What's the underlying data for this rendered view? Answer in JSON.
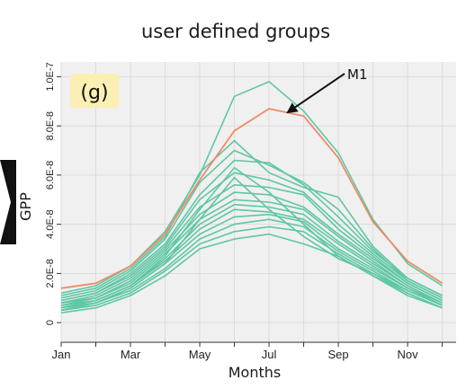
{
  "chart_data": {
    "type": "line",
    "title": "user defined groups",
    "xlabel": "Months",
    "ylabel": "GPP",
    "panel_label": "(g)",
    "x_ticks": [
      "Jan",
      "Mar",
      "May",
      "Jul",
      "Sep",
      "Nov"
    ],
    "y_ticks": [
      "0",
      "2.0E-8",
      "4.0E-8",
      "6.0E-8",
      "8.0E-8",
      "1.0E-7"
    ],
    "y_tick_values": [
      0,
      2e-08,
      4e-08,
      6e-08,
      8e-08,
      1e-07
    ],
    "x": [
      1,
      2,
      3,
      4,
      5,
      6,
      7,
      8,
      9,
      10,
      11,
      12
    ],
    "xlim": [
      1,
      12.4
    ],
    "ylim": [
      -8e-09,
      1.06e-07
    ],
    "grid": true,
    "colors": {
      "group": "#5ec7a4",
      "highlight": "#f08a65",
      "background": "#f0f0f0",
      "grid": "#dcdcdc"
    },
    "annotation": {
      "text": "M1",
      "series": "M1",
      "x": 7.5
    },
    "highlight": {
      "name": "M1",
      "values": [
        1.4e-08,
        1.6e-08,
        2.3e-08,
        3.6e-08,
        5.8e-08,
        7.8e-08,
        8.7e-08,
        8.4e-08,
        6.7e-08,
        4.1e-08,
        2.5e-08,
        1.6e-08
      ]
    },
    "series": [
      {
        "values": [
          1.2e-08,
          1.5e-08,
          2.3e-08,
          3.7e-08,
          6e-08,
          9.2e-08,
          9.8e-08,
          8.6e-08,
          6.9e-08,
          4.2e-08,
          2.4e-08,
          1.5e-08
        ]
      },
      {
        "values": [
          1.1e-08,
          1.4e-08,
          2.2e-08,
          3.5e-08,
          6.1e-08,
          7.4e-08,
          6.1e-08,
          5.5e-08,
          5.1e-08,
          3.1e-08,
          1.8e-08,
          1.1e-08
        ]
      },
      {
        "values": [
          1e-08,
          1.3e-08,
          2.1e-08,
          3.4e-08,
          5.7e-08,
          7e-08,
          6.4e-08,
          5.7e-08,
          4.6e-08,
          3e-08,
          1.7e-08,
          1e-08
        ]
      },
      {
        "values": [
          9e-09,
          1.2e-08,
          2e-08,
          3.2e-08,
          5.2e-08,
          6.6e-08,
          6.5e-08,
          5.6e-08,
          4.3e-08,
          2.9e-08,
          1.8e-08,
          1.1e-08
        ]
      },
      {
        "values": [
          9e-09,
          1.2e-08,
          1.9e-08,
          3.1e-08,
          5e-08,
          6.1e-08,
          5.8e-08,
          5.3e-08,
          4e-08,
          2.8e-08,
          1.7e-08,
          1e-08
        ]
      },
      {
        "values": [
          8e-09,
          1.1e-08,
          1.8e-08,
          3e-08,
          4.7e-08,
          5.6e-08,
          5.5e-08,
          5.2e-08,
          3.8e-08,
          2.7e-08,
          1.6e-08,
          9e-09
        ]
      },
      {
        "values": [
          8e-09,
          1e-08,
          1.7e-08,
          2.9e-08,
          4.4e-08,
          5.3e-08,
          5.2e-08,
          4.7e-08,
          3.6e-08,
          2.6e-08,
          1.6e-08,
          9e-09
        ]
      },
      {
        "values": [
          7e-09,
          1e-08,
          1.6e-08,
          2.8e-08,
          4.2e-08,
          5e-08,
          4.9e-08,
          4.6e-08,
          3.5e-08,
          2.5e-08,
          1.5e-08,
          8e-09
        ]
      },
      {
        "values": [
          7e-09,
          9e-09,
          1.5e-08,
          2.6e-08,
          4e-08,
          4.8e-08,
          4.7e-08,
          4.4e-08,
          3.3e-08,
          2.4e-08,
          1.5e-08,
          8e-09
        ]
      },
      {
        "values": [
          6e-09,
          9e-09,
          1.5e-08,
          2.5e-08,
          3.8e-08,
          4.6e-08,
          4.5e-08,
          4.2e-08,
          3.2e-08,
          2.3e-08,
          1.4e-08,
          8e-09
        ]
      },
      {
        "values": [
          6e-09,
          8e-09,
          1.4e-08,
          2.4e-08,
          3.6e-08,
          4.3e-08,
          4.4e-08,
          4.1e-08,
          3e-08,
          2.2e-08,
          1.4e-08,
          7e-09
        ]
      },
      {
        "values": [
          5e-09,
          8e-09,
          1.3e-08,
          2.2e-08,
          3.4e-08,
          4e-08,
          4.2e-08,
          3.9e-08,
          2.9e-08,
          2.1e-08,
          1.3e-08,
          7e-09
        ]
      },
      {
        "values": [
          5e-09,
          7e-09,
          1.2e-08,
          2.1e-08,
          3.2e-08,
          3.7e-08,
          3.9e-08,
          3.7e-08,
          2.8e-08,
          2e-08,
          1.2e-08,
          6e-09
        ]
      },
      {
        "values": [
          4e-09,
          6e-09,
          1.1e-08,
          1.9e-08,
          3e-08,
          3.4e-08,
          3.6e-08,
          3.2e-08,
          2.7e-08,
          1.9e-08,
          1.1e-08,
          6e-09
        ]
      },
      {
        "values": [
          6e-09,
          9e-09,
          1.5e-08,
          2.7e-08,
          4.6e-08,
          6.3e-08,
          5.3e-08,
          4e-08,
          2.7e-08,
          1.9e-08,
          1.2e-08,
          6e-09
        ]
      },
      {
        "values": [
          5e-09,
          8e-09,
          1.4e-08,
          2.4e-08,
          4.2e-08,
          5.9e-08,
          4.6e-08,
          3.5e-08,
          2.6e-08,
          2e-08,
          1.3e-08,
          7e-09
        ]
      }
    ]
  }
}
